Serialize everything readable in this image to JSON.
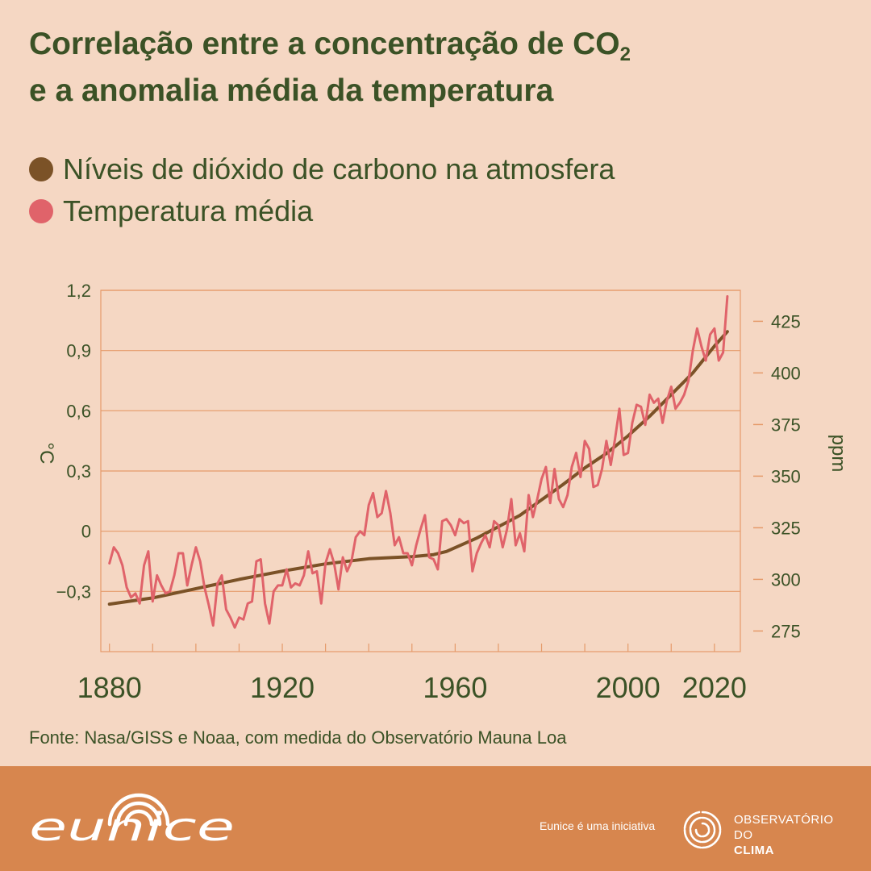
{
  "title": {
    "line1_before_sub": "Correlação entre a concentração de CO",
    "line1_sub": "2",
    "line2": "e a anomalia média da temperatura"
  },
  "legend": [
    {
      "label": "Níveis de dióxido de carbono na atmosfera",
      "color": "#7b5227"
    },
    {
      "label": "Temperatura média",
      "color": "#e0636a"
    }
  ],
  "source": "Fonte: Nasa/GISS e Noaa, com medida do Observatório Mauna Loa",
  "footer": {
    "initiative": "Eunice é uma iniciativa",
    "partner_line1": "OBSERVATÓRIO",
    "partner_line2_a": "DO ",
    "partner_line2_b": "CLIMA",
    "logo_text": "eunice",
    "logo_icon": "rainbow-arcs-icon",
    "partner_icon": "swirl-icon"
  },
  "chart_data": {
    "type": "line",
    "xlabel": "",
    "ylabel": "°C",
    "y2label": "ppm",
    "xlim": [
      1878,
      2026
    ],
    "ylim": [
      -0.6,
      1.2
    ],
    "y2lim": [
      265,
      440
    ],
    "x_ticks": [
      1880,
      1920,
      1960,
      2000,
      2020
    ],
    "x_tick_labels": [
      "1880",
      "1920",
      "1960",
      "2000",
      "2020"
    ],
    "y_ticks": [
      -0.3,
      0,
      0.3,
      0.6,
      0.9,
      1.2
    ],
    "y_tick_labels": [
      "−0,3",
      "0",
      "0,3",
      "0,6",
      "0,9",
      "1,2"
    ],
    "y2_ticks": [
      275,
      300,
      325,
      350,
      375,
      400,
      425
    ],
    "y2_tick_labels": [
      "275",
      "300",
      "325",
      "350",
      "375",
      "400",
      "425"
    ],
    "grid": true,
    "series": [
      {
        "name": "Níveis de dióxido de carbono na atmosfera",
        "axis": "right",
        "color": "#7b5227",
        "x": [
          1880,
          1890,
          1900,
          1910,
          1920,
          1930,
          1940,
          1950,
          1955,
          1958,
          1965,
          1970,
          1975,
          1980,
          1985,
          1990,
          1995,
          2000,
          2005,
          2010,
          2015,
          2020,
          2023
        ],
        "values": [
          288,
          291,
          295.5,
          300,
          304,
          307.5,
          310,
          311,
          312,
          313.5,
          320,
          325.5,
          331,
          338.5,
          346,
          354,
          361,
          369.5,
          379,
          389.5,
          400,
          413,
          420
        ]
      },
      {
        "name": "Temperatura média",
        "axis": "left",
        "color": "#e0636a",
        "x": [
          1880,
          1881,
          1882,
          1883,
          1884,
          1885,
          1886,
          1887,
          1888,
          1889,
          1890,
          1891,
          1892,
          1893,
          1894,
          1895,
          1896,
          1897,
          1898,
          1899,
          1900,
          1901,
          1902,
          1903,
          1904,
          1905,
          1906,
          1907,
          1908,
          1909,
          1910,
          1911,
          1912,
          1913,
          1914,
          1915,
          1916,
          1917,
          1918,
          1919,
          1920,
          1921,
          1922,
          1923,
          1924,
          1925,
          1926,
          1927,
          1928,
          1929,
          1930,
          1931,
          1932,
          1933,
          1934,
          1935,
          1936,
          1937,
          1938,
          1939,
          1940,
          1941,
          1942,
          1943,
          1944,
          1945,
          1946,
          1947,
          1948,
          1949,
          1950,
          1951,
          1952,
          1953,
          1954,
          1955,
          1956,
          1957,
          1958,
          1959,
          1960,
          1961,
          1962,
          1963,
          1964,
          1965,
          1966,
          1967,
          1968,
          1969,
          1970,
          1971,
          1972,
          1973,
          1974,
          1975,
          1976,
          1977,
          1978,
          1979,
          1980,
          1981,
          1982,
          1983,
          1984,
          1985,
          1986,
          1987,
          1988,
          1989,
          1990,
          1991,
          1992,
          1993,
          1994,
          1995,
          1996,
          1997,
          1998,
          1999,
          2000,
          2001,
          2002,
          2003,
          2004,
          2005,
          2006,
          2007,
          2008,
          2009,
          2010,
          2011,
          2012,
          2013,
          2014,
          2015,
          2016,
          2017,
          2018,
          2019,
          2020,
          2021,
          2022,
          2023
        ],
        "values": [
          -0.16,
          -0.08,
          -0.11,
          -0.17,
          -0.28,
          -0.33,
          -0.31,
          -0.36,
          -0.17,
          -0.1,
          -0.35,
          -0.22,
          -0.27,
          -0.31,
          -0.3,
          -0.22,
          -0.11,
          -0.11,
          -0.27,
          -0.17,
          -0.08,
          -0.15,
          -0.28,
          -0.37,
          -0.47,
          -0.26,
          -0.22,
          -0.39,
          -0.43,
          -0.48,
          -0.43,
          -0.44,
          -0.36,
          -0.35,
          -0.15,
          -0.14,
          -0.36,
          -0.46,
          -0.3,
          -0.27,
          -0.27,
          -0.19,
          -0.28,
          -0.26,
          -0.27,
          -0.22,
          -0.1,
          -0.21,
          -0.2,
          -0.36,
          -0.16,
          -0.09,
          -0.16,
          -0.29,
          -0.13,
          -0.2,
          -0.15,
          -0.03,
          0,
          -0.02,
          0.13,
          0.19,
          0.07,
          0.09,
          0.2,
          0.09,
          -0.07,
          -0.03,
          -0.11,
          -0.11,
          -0.17,
          -0.07,
          0.01,
          0.08,
          -0.13,
          -0.14,
          -0.19,
          0.05,
          0.06,
          0.03,
          -0.02,
          0.06,
          0.04,
          0.05,
          -0.2,
          -0.11,
          -0.06,
          -0.02,
          -0.08,
          0.05,
          0.03,
          -0.08,
          0.01,
          0.16,
          -0.07,
          -0.01,
          -0.1,
          0.18,
          0.07,
          0.16,
          0.26,
          0.32,
          0.14,
          0.31,
          0.16,
          0.12,
          0.18,
          0.32,
          0.39,
          0.27,
          0.45,
          0.41,
          0.22,
          0.23,
          0.31,
          0.45,
          0.33,
          0.46,
          0.61,
          0.38,
          0.39,
          0.54,
          0.63,
          0.62,
          0.53,
          0.68,
          0.64,
          0.66,
          0.54,
          0.65,
          0.72,
          0.61,
          0.64,
          0.68,
          0.75,
          0.9,
          1.01,
          0.92,
          0.85,
          0.98,
          1.01,
          0.85,
          0.89,
          1.17
        ]
      }
    ]
  }
}
